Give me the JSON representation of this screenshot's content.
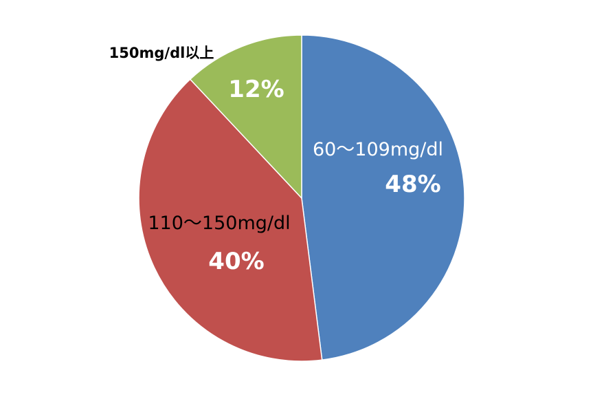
{
  "chart_data": {
    "type": "pie",
    "start_angle_deg": 0,
    "direction": "clockwise",
    "slices": [
      {
        "label": "60〜109mg/dl",
        "value": 48,
        "value_label": "48%",
        "color": "#4f81bd",
        "label_color": "#ffffff",
        "value_color": "#ffffff"
      },
      {
        "label": "110〜150mg/dl",
        "value": 40,
        "value_label": "40%",
        "color": "#c0504d",
        "label_color": "#000000",
        "value_color": "#ffffff"
      },
      {
        "label": "150mg/dl以上",
        "value": 12,
        "value_label": "12%",
        "color": "#9bbb59",
        "label_color": "#000000",
        "value_color": "#ffffff"
      }
    ],
    "legend": "none",
    "border_color": "#ffffff"
  }
}
